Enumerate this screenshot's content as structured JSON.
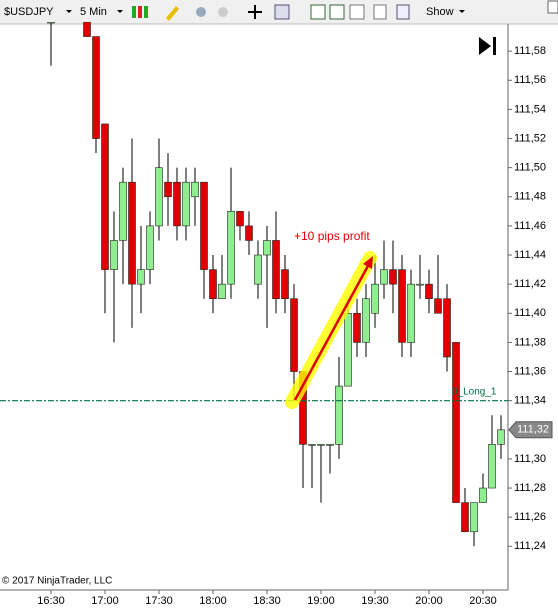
{
  "toolbar": {
    "instrument": "$USDJPY",
    "interval": "5 Min",
    "show": "Show"
  },
  "chart_data": {
    "type": "candlestick",
    "copyright": "© 2017 NinjaTrader, LLC",
    "annotation": "+10 pips profit",
    "up_color": "#90ee90",
    "down_color": "#e00000",
    "categories": [
      "16:30",
      null,
      null,
      null,
      null,
      null,
      "17:00",
      null,
      null,
      null,
      null,
      null,
      "17:30",
      null,
      null,
      null,
      null,
      null,
      "18:00",
      null,
      null,
      null,
      null,
      null,
      "18:30",
      null,
      null,
      null,
      null,
      null,
      "19:00",
      null,
      null,
      null,
      null,
      null,
      "19:30",
      null,
      null,
      null,
      null,
      null,
      "20:00",
      null,
      null,
      null,
      null,
      null,
      "20:30",
      null,
      null
    ],
    "open": [
      111.6,
      null,
      null,
      null,
      111.6,
      111.59,
      111.53,
      111.43,
      111.45,
      111.49,
      111.42,
      111.43,
      111.46,
      111.49,
      111.49,
      111.46,
      111.48,
      111.49,
      111.43,
      111.41,
      111.42,
      111.47,
      111.46,
      111.42,
      111.44,
      111.45,
      111.43,
      111.41,
      111.36,
      111.31,
      111.31,
      111.31,
      111.31,
      111.35,
      111.4,
      111.38,
      111.4,
      111.42,
      111.43,
      111.43,
      111.38,
      111.42,
      111.42,
      111.41,
      111.41,
      111.38,
      111.27,
      111.25,
      111.27,
      111.28,
      111.31
    ],
    "high": [
      111.6,
      null,
      null,
      null,
      111.6,
      111.59,
      111.53,
      111.47,
      111.5,
      111.52,
      111.46,
      111.47,
      111.52,
      111.51,
      111.5,
      111.5,
      111.5,
      111.49,
      111.44,
      111.44,
      111.5,
      111.47,
      111.47,
      111.45,
      111.46,
      111.47,
      111.44,
      111.42,
      111.36,
      111.31,
      111.31,
      111.31,
      111.37,
      111.41,
      111.41,
      111.42,
      111.44,
      111.45,
      111.45,
      111.44,
      111.43,
      111.44,
      111.43,
      111.44,
      111.42,
      111.38,
      111.28,
      111.27,
      111.29,
      111.33,
      111.33
    ],
    "low": [
      111.57,
      null,
      null,
      null,
      111.59,
      111.51,
      111.4,
      111.38,
      111.42,
      111.39,
      111.4,
      111.42,
      111.45,
      111.46,
      111.45,
      111.45,
      111.46,
      111.41,
      111.4,
      111.41,
      111.41,
      111.45,
      111.44,
      111.41,
      111.39,
      111.4,
      111.4,
      111.34,
      111.28,
      111.28,
      111.27,
      111.29,
      111.3,
      111.35,
      111.37,
      111.37,
      111.39,
      111.41,
      111.4,
      111.37,
      111.37,
      111.41,
      111.4,
      111.4,
      111.36,
      111.27,
      111.25,
      111.24,
      111.27,
      111.28,
      111.3
    ],
    "close": [
      111.6,
      null,
      null,
      null,
      111.59,
      111.52,
      111.43,
      111.45,
      111.49,
      111.42,
      111.43,
      111.46,
      111.5,
      111.48,
      111.46,
      111.49,
      111.49,
      111.43,
      111.41,
      111.42,
      111.47,
      111.46,
      111.45,
      111.44,
      111.45,
      111.41,
      111.41,
      111.36,
      111.31,
      111.31,
      111.31,
      111.31,
      111.35,
      111.4,
      111.38,
      111.41,
      111.42,
      111.43,
      111.42,
      111.38,
      111.42,
      111.42,
      111.41,
      111.4,
      111.37,
      111.27,
      111.25,
      111.27,
      111.28,
      111.31,
      111.32
    ],
    "ylim": [
      111.21,
      111.6
    ],
    "yticks": [
      {
        "value": 111.24,
        "label": "111,24"
      },
      {
        "value": 111.26,
        "label": "111,26"
      },
      {
        "value": 111.28,
        "label": "111,28"
      },
      {
        "value": 111.3,
        "label": "111,30"
      },
      {
        "value": 111.32,
        "label": "111,32"
      },
      {
        "value": 111.34,
        "label": "111,34"
      },
      {
        "value": 111.36,
        "label": "111,36"
      },
      {
        "value": 111.38,
        "label": "111,38"
      },
      {
        "value": 111.4,
        "label": "111,40"
      },
      {
        "value": 111.42,
        "label": "111,42"
      },
      {
        "value": 111.44,
        "label": "111,44"
      },
      {
        "value": 111.46,
        "label": "111,46"
      },
      {
        "value": 111.48,
        "label": "111,48"
      },
      {
        "value": 111.5,
        "label": "111,50"
      },
      {
        "value": 111.52,
        "label": "111,52"
      },
      {
        "value": 111.54,
        "label": "111,54"
      },
      {
        "value": 111.56,
        "label": "111,56"
      },
      {
        "value": 111.58,
        "label": "111,58"
      }
    ],
    "last_price": {
      "value": 111.32,
      "label": "111,32"
    },
    "level": {
      "value": 111.34,
      "label": "0_Long_1",
      "color": "#007040"
    }
  }
}
